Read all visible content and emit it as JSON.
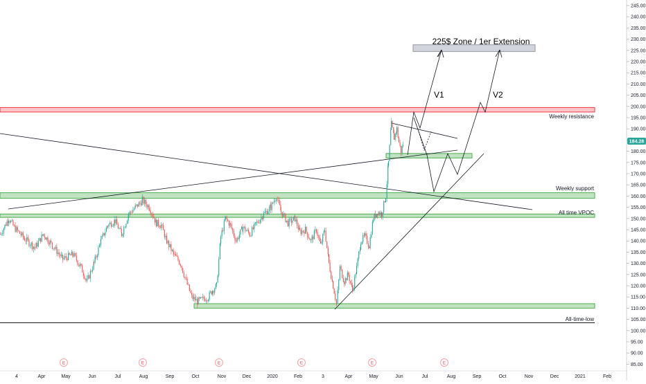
{
  "chart_data": {
    "type": "candlestick",
    "title": "",
    "y_axis": {
      "ticks": [
        "245.00",
        "240.00",
        "235.00",
        "230.00",
        "225.00",
        "220.00",
        "215.00",
        "210.00",
        "205.00",
        "200.00",
        "195.00",
        "190.00",
        "185.00",
        "180.00",
        "175.00",
        "170.00",
        "165.00",
        "160.00",
        "155.00",
        "150.00",
        "145.00",
        "140.00",
        "135.00",
        "130.00",
        "125.00",
        "120.00",
        "115.00",
        "110.00",
        "105.00",
        "100.00",
        "95.00",
        "90.00",
        "85.00"
      ],
      "range": [
        82,
        247
      ]
    },
    "x_axis": {
      "ticks": [
        "4",
        "Apr",
        "May",
        "Jun",
        "Jul",
        "Aug",
        "Sep",
        "Oct",
        "Nov",
        "Dec",
        "2020",
        "Feb",
        "3",
        "Apr",
        "May",
        "Jun",
        "Jul",
        "Aug",
        "Sep",
        "Oct",
        "Nov",
        "Dec",
        "2021",
        "Feb"
      ]
    },
    "current_price": {
      "label": "184.28",
      "value": 184.28,
      "color": "#26a69a"
    },
    "zones": [
      {
        "name": "weekly-resistance",
        "label": "Weekly resistance",
        "low": 197.5,
        "high": 199.5,
        "color": "#f23645"
      },
      {
        "name": "weekly-support",
        "label": "Weekly support",
        "low": 159,
        "high": 161.5,
        "color": "#4caf50"
      },
      {
        "name": "all-time-vpoc",
        "label": "All time VPOC",
        "low": 150.5,
        "high": 152,
        "color": "#4caf50"
      },
      {
        "name": "bottom-zone",
        "label": "",
        "low": 110,
        "high": 112,
        "color": "#4caf50"
      },
      {
        "name": "consolidation-zone",
        "label": "",
        "low": 177,
        "high": 179,
        "color": "#4caf50"
      },
      {
        "name": "target-zone",
        "label": "225$ Zone / 1er Extension",
        "low": 224.5,
        "high": 227.5,
        "color": "#b2b5be"
      }
    ],
    "all_time_low": {
      "label": "All-time-low",
      "value": 103.5
    },
    "scenario_labels": [
      "V1",
      "V2"
    ],
    "earnings_marker": "E",
    "series": [
      {
        "name": "",
        "price_path": [
          [
            0,
            143
          ],
          [
            12,
            150
          ],
          [
            20,
            146
          ],
          [
            35,
            141
          ],
          [
            50,
            137
          ],
          [
            62,
            143
          ],
          [
            75,
            138
          ],
          [
            90,
            132
          ],
          [
            105,
            134
          ],
          [
            115,
            129
          ],
          [
            125,
            122
          ],
          [
            135,
            130
          ],
          [
            145,
            140
          ],
          [
            155,
            147
          ],
          [
            165,
            149
          ],
          [
            175,
            143
          ],
          [
            185,
            152
          ],
          [
            195,
            155
          ],
          [
            205,
            158
          ],
          [
            215,
            155
          ],
          [
            225,
            148
          ],
          [
            232,
            147
          ],
          [
            240,
            140
          ],
          [
            250,
            134
          ],
          [
            260,
            130
          ],
          [
            268,
            122
          ],
          [
            276,
            115
          ],
          [
            284,
            113
          ],
          [
            292,
            114
          ],
          [
            300,
            115
          ],
          [
            306,
            118
          ],
          [
            312,
            120
          ],
          [
            318,
            142
          ],
          [
            325,
            150
          ],
          [
            332,
            147
          ],
          [
            340,
            140
          ],
          [
            350,
            146
          ],
          [
            360,
            143
          ],
          [
            370,
            148
          ],
          [
            380,
            152
          ],
          [
            390,
            155
          ],
          [
            398,
            160
          ],
          [
            405,
            153
          ],
          [
            415,
            148
          ],
          [
            425,
            150
          ],
          [
            432,
            144
          ],
          [
            440,
            145
          ],
          [
            448,
            140
          ],
          [
            456,
            145
          ],
          [
            462,
            138
          ],
          [
            468,
            145
          ],
          [
            474,
            130
          ],
          [
            480,
            120
          ],
          [
            485,
            112
          ],
          [
            490,
            128
          ],
          [
            496,
            122
          ],
          [
            502,
            125
          ],
          [
            508,
            118
          ],
          [
            514,
            128
          ],
          [
            520,
            140
          ],
          [
            526,
            142
          ],
          [
            532,
            138
          ],
          [
            538,
            150
          ],
          [
            544,
            153
          ],
          [
            550,
            152
          ],
          [
            556,
            160
          ],
          [
            560,
            175
          ],
          [
            564,
            192
          ],
          [
            568,
            186
          ],
          [
            572,
            190
          ],
          [
            575,
            184
          ],
          [
            578,
            180
          ],
          [
            582,
            184
          ]
        ]
      }
    ]
  }
}
